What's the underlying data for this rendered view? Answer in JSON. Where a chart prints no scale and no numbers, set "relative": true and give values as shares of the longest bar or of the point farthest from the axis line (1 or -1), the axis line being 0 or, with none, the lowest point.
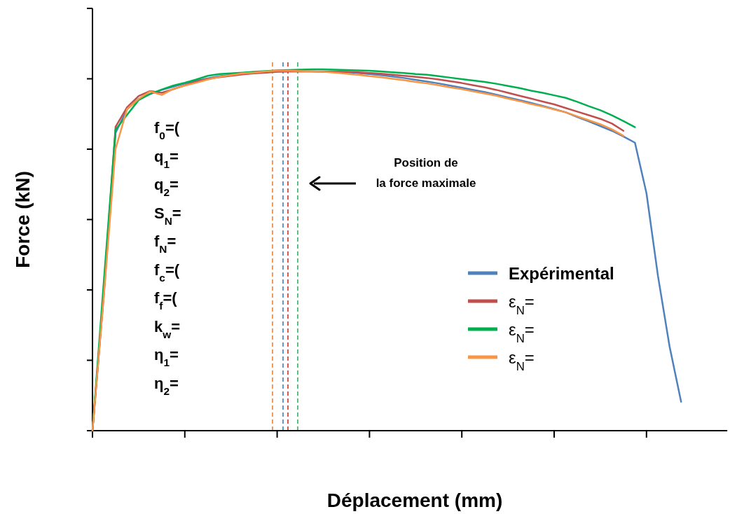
{
  "chart_data": {
    "type": "line",
    "relative": true,
    "xlabel": "Déplacement (mm)",
    "ylabel": "Force (kN)",
    "categories": [
      null,
      null,
      null,
      null,
      null,
      null,
      null,
      null,
      null,
      null,
      null,
      null,
      null,
      null,
      null,
      null,
      null,
      null,
      null,
      null,
      null,
      null,
      null,
      null,
      null,
      null,
      null,
      null,
      null,
      null,
      null,
      null,
      null,
      null,
      null,
      null,
      null,
      null,
      null,
      null,
      null,
      null,
      null,
      null,
      null,
      null,
      null,
      null,
      null,
      null,
      null,
      null,
      null,
      null,
      null,
      null
    ],
    "legend": "right",
    "grid": false,
    "marker": "none",
    "line_style": "solid",
    "series": [
      {
        "name": "Expérimental",
        "color": "#4f81bd",
        "values": [
          0,
          0.382,
          0.824,
          0.89,
          0.918,
          0.932,
          0.943,
          0.952,
          0.961,
          0.968,
          0.975,
          0.981,
          0.985,
          0.988,
          0.99,
          0.992,
          0.994,
          0.994,
          0.994,
          0.994,
          0.993,
          0.993,
          0.992,
          0.99,
          0.987,
          0.984,
          0.98,
          0.976,
          0.971,
          0.966,
          0.961,
          0.955,
          0.949,
          0.943,
          0.937,
          0.93,
          0.922,
          0.915,
          0.907,
          0.899,
          0.89,
          0.881,
          0.868,
          0.856,
          0.843,
          0.83,
          0.814,
          0.797,
          0.657,
          0.427,
          0.233,
          0.08,
          null,
          null,
          null,
          null
        ]
      },
      {
        "name": "ε$_{N}$=",
        "color": "#c0504d",
        "values": [
          0,
          0.39,
          0.841,
          0.895,
          0.926,
          0.94,
          0.935,
          0.945,
          0.956,
          0.966,
          0.974,
          0.978,
          0.982,
          0.986,
          0.989,
          0.991,
          0.993,
          0.994,
          0.994,
          0.994,
          0.994,
          0.993,
          0.993,
          0.992,
          0.99,
          0.988,
          0.985,
          0.982,
          0.979,
          0.976,
          0.972,
          0.967,
          0.962,
          0.956,
          0.95,
          0.943,
          0.935,
          0.927,
          0.919,
          0.911,
          0.903,
          0.893,
          0.883,
          0.873,
          0.863,
          0.85,
          0.83,
          null,
          null,
          null,
          null,
          null,
          null,
          null,
          null,
          null
        ]
      },
      {
        "name": "ε$_{N}$=",
        "color": "#00b050",
        "values": [
          0,
          0.42,
          0.833,
          0.874,
          0.915,
          0.932,
          0.944,
          0.955,
          0.963,
          0.972,
          0.982,
          0.987,
          0.989,
          0.991,
          0.993,
          0.995,
          0.997,
          0.998,
          0.999,
          1,
          1,
          0.999,
          0.998,
          0.997,
          0.996,
          0.994,
          0.992,
          0.99,
          0.987,
          0.985,
          0.981,
          0.977,
          0.973,
          0.969,
          0.965,
          0.96,
          0.954,
          0.948,
          0.941,
          0.935,
          0.928,
          0.921,
          0.91,
          0.898,
          0.887,
          0.873,
          0.857,
          0.84,
          null,
          null,
          null,
          null,
          null,
          null,
          null,
          null
        ]
      },
      {
        "name": "ε$_{N}$=",
        "color": "#f79646",
        "values": [
          0,
          0.38,
          0.78,
          0.89,
          0.918,
          0.939,
          0.929,
          0.946,
          0.955,
          0.963,
          0.972,
          0.979,
          0.984,
          0.989,
          0.991,
          0.994,
          0.996,
          0.996,
          0.995,
          0.994,
          0.993,
          0.991,
          0.988,
          0.985,
          0.981,
          0.978,
          0.974,
          0.97,
          0.965,
          0.961,
          0.956,
          0.95,
          0.945,
          0.939,
          0.933,
          0.927,
          0.919,
          0.912,
          0.904,
          0.897,
          0.889,
          0.881,
          0.87,
          0.859,
          0.848,
          0.834,
          0.816,
          null,
          null,
          null,
          null,
          null,
          null,
          null,
          null,
          null
        ]
      }
    ],
    "annotations": [
      "f$_{0}$=(",
      "q$_{1}$=",
      "q$_{2}$=",
      "S$_{N}$=",
      "f$_{N}$=",
      "f$_{c}$=(",
      "f$_{f}$=(",
      "k$_{w}$=",
      "η$_{1}$=",
      "η$_{2}$=",
      "Position de\nla force maximale"
    ]
  }
}
